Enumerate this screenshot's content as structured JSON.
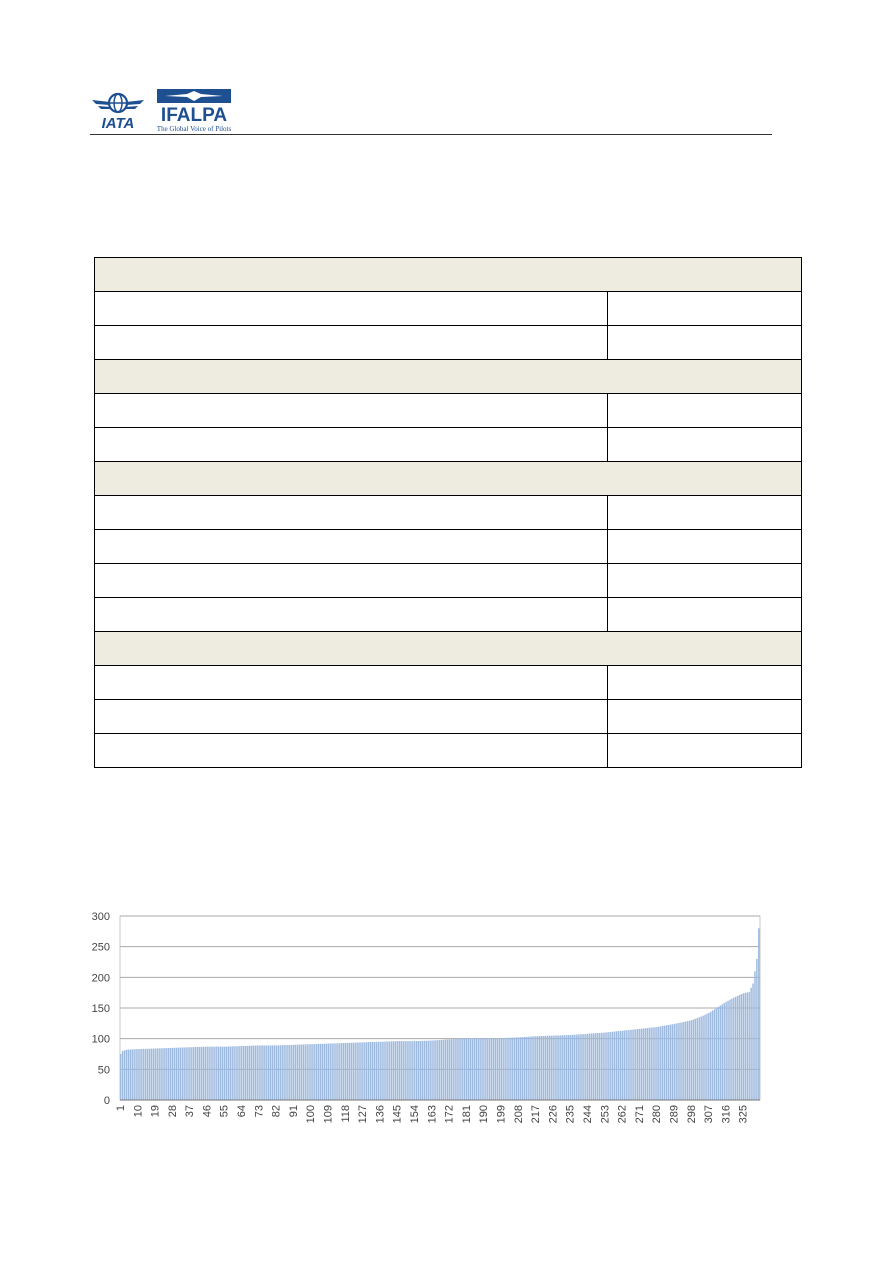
{
  "header": {
    "iata_logo_text": "IATA",
    "ifalpa_logo_text": "IFALPA",
    "ifalpa_tagline": "The Global Voice of Pilots"
  },
  "table": {
    "rows": [
      {
        "type": "section"
      },
      {
        "type": "data"
      },
      {
        "type": "data"
      },
      {
        "type": "section"
      },
      {
        "type": "data"
      },
      {
        "type": "data"
      },
      {
        "type": "section"
      },
      {
        "type": "data"
      },
      {
        "type": "data"
      },
      {
        "type": "data"
      },
      {
        "type": "data"
      },
      {
        "type": "section"
      },
      {
        "type": "data"
      },
      {
        "type": "data"
      },
      {
        "type": "data"
      }
    ]
  },
  "colors": {
    "section_fill": "#eeebe1",
    "bar_fill": "#9db9de",
    "grid": "#a8a8a8"
  },
  "chart_data": {
    "type": "bar",
    "n_bars": 333,
    "yticks": [
      0,
      50,
      100,
      150,
      200,
      250,
      300
    ],
    "ylim": [
      0,
      300
    ],
    "xtick_labels": [
      "1",
      "10",
      "19",
      "28",
      "37",
      "46",
      "55",
      "64",
      "73",
      "82",
      "91",
      "100",
      "109",
      "118",
      "127",
      "136",
      "145",
      "154",
      "163",
      "172",
      "181",
      "190",
      "199",
      "208",
      "217",
      "226",
      "235",
      "244",
      "253",
      "262",
      "271",
      "280",
      "289",
      "298",
      "307",
      "316",
      "325"
    ],
    "profile_points": [
      [
        1,
        75
      ],
      [
        2,
        80
      ],
      [
        4,
        82
      ],
      [
        10,
        83
      ],
      [
        19,
        84
      ],
      [
        28,
        85
      ],
      [
        37,
        86
      ],
      [
        46,
        87
      ],
      [
        55,
        87
      ],
      [
        64,
        88
      ],
      [
        73,
        89
      ],
      [
        82,
        89
      ],
      [
        91,
        90
      ],
      [
        100,
        91
      ],
      [
        109,
        92
      ],
      [
        118,
        93
      ],
      [
        127,
        94
      ],
      [
        136,
        95
      ],
      [
        145,
        96
      ],
      [
        154,
        96
      ],
      [
        163,
        97
      ],
      [
        172,
        99
      ],
      [
        181,
        100
      ],
      [
        190,
        101
      ],
      [
        199,
        101
      ],
      [
        208,
        102
      ],
      [
        217,
        104
      ],
      [
        226,
        105
      ],
      [
        235,
        106
      ],
      [
        244,
        108
      ],
      [
        253,
        110
      ],
      [
        262,
        113
      ],
      [
        271,
        116
      ],
      [
        280,
        119
      ],
      [
        289,
        124
      ],
      [
        298,
        130
      ],
      [
        303,
        136
      ],
      [
        307,
        142
      ],
      [
        311,
        150
      ],
      [
        316,
        160
      ],
      [
        320,
        167
      ],
      [
        325,
        174
      ],
      [
        328,
        176
      ],
      [
        330,
        190
      ],
      [
        331,
        210
      ],
      [
        332,
        230
      ],
      [
        333,
        280
      ]
    ]
  }
}
